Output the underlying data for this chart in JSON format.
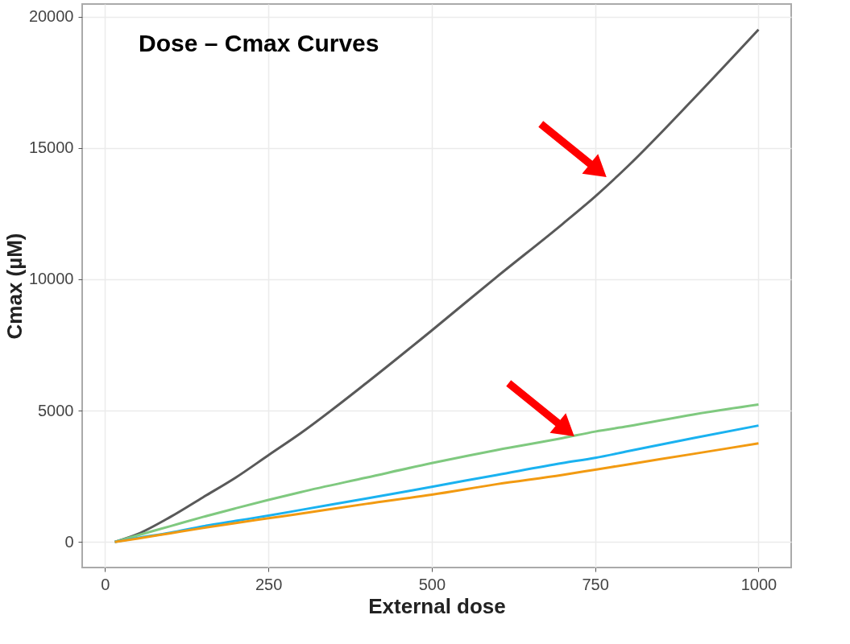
{
  "chart_data": {
    "type": "line",
    "title": "Dose – Cmax Curves",
    "xlabel": "External dose",
    "ylabel": "Cmax (µM)",
    "x": [
      15,
      50,
      100,
      150,
      200,
      250,
      300,
      400,
      500,
      600,
      700,
      750,
      800,
      900,
      1000
    ],
    "series": [
      {
        "color": "#595959",
        "values": [
          0,
          300,
          950,
          1700,
          2450,
          3300,
          4150,
          6050,
          8050,
          10100,
          12100,
          13150,
          14300,
          16850,
          19500
        ]
      },
      {
        "color": "#7fc97f",
        "values": [
          0,
          250,
          600,
          950,
          1280,
          1600,
          1900,
          2450,
          3000,
          3500,
          3950,
          4200,
          4400,
          4850,
          5230
        ]
      },
      {
        "color": "#1ab2f0",
        "values": [
          0,
          150,
          350,
          600,
          800,
          1000,
          1220,
          1650,
          2100,
          2550,
          3000,
          3200,
          3450,
          3950,
          4430
        ]
      },
      {
        "color": "#f29a11",
        "values": [
          0,
          130,
          330,
          530,
          720,
          900,
          1080,
          1450,
          1800,
          2200,
          2550,
          2750,
          2950,
          3350,
          3750
        ]
      }
    ],
    "xlim": [
      -35,
      1050
    ],
    "ylim": [
      -975,
      20475
    ],
    "xticks": [
      0,
      250,
      500,
      750,
      1000
    ],
    "yticks": [
      0,
      5000,
      10000,
      15000,
      20000
    ],
    "grid": true,
    "legend": false,
    "marker": "none",
    "line_style": "solid"
  }
}
